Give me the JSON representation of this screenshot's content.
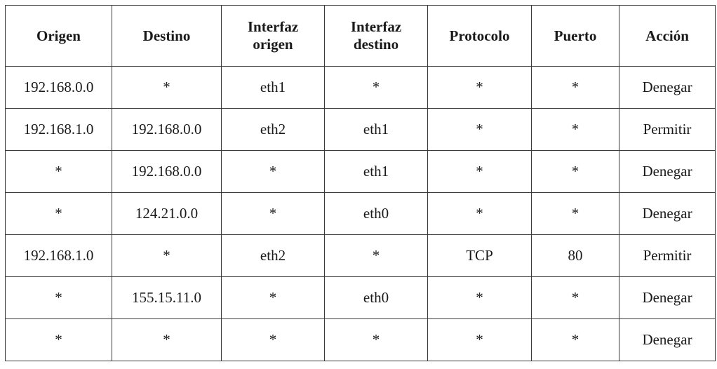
{
  "table": {
    "headers": [
      "Origen",
      "Destino",
      "Interfaz\norigen",
      "Interfaz\ndestino",
      "Protocolo",
      "Puerto",
      "Acción"
    ],
    "rows": [
      [
        "192.168.0.0",
        "*",
        "eth1",
        "*",
        "*",
        "*",
        "Denegar"
      ],
      [
        "192.168.1.0",
        "192.168.0.0",
        "eth2",
        "eth1",
        "*",
        "*",
        "Permitir"
      ],
      [
        "*",
        "192.168.0.0",
        "*",
        "eth1",
        "*",
        "*",
        "Denegar"
      ],
      [
        "*",
        "124.21.0.0",
        "*",
        "eth0",
        "*",
        "*",
        "Denegar"
      ],
      [
        "192.168.1.0",
        "*",
        "eth2",
        "*",
        "TCP",
        "80",
        "Permitir"
      ],
      [
        "*",
        "155.15.11.0",
        "*",
        "eth0",
        "*",
        "*",
        "Denegar"
      ],
      [
        "*",
        "*",
        "*",
        "*",
        "*",
        "*",
        "Denegar"
      ]
    ]
  }
}
